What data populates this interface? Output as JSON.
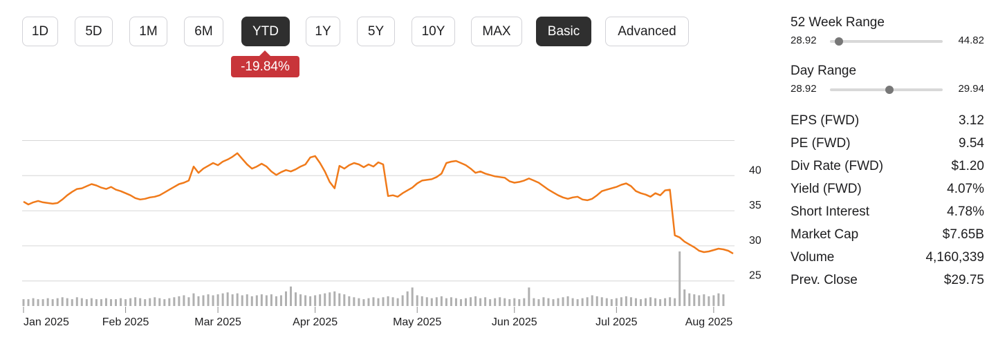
{
  "range_buttons": [
    {
      "label": "1D",
      "active": false
    },
    {
      "label": "5D",
      "active": false
    },
    {
      "label": "1M",
      "active": false
    },
    {
      "label": "6M",
      "active": false
    },
    {
      "label": "YTD",
      "active": true
    },
    {
      "label": "1Y",
      "active": false
    },
    {
      "label": "5Y",
      "active": false
    },
    {
      "label": "10Y",
      "active": false
    },
    {
      "label": "MAX",
      "active": false
    },
    {
      "label": "Basic",
      "active": true
    },
    {
      "label": "Advanced",
      "active": false
    }
  ],
  "change_badge": "-19.84%",
  "colors": {
    "line": "#f07a1a",
    "volume": "#b0b0b0",
    "grid": "#d6d6d6",
    "badge": "#c8353a",
    "active_button": "#2f2f2f"
  },
  "stats": {
    "week52": {
      "title": "52 Week Range",
      "low": "28.92",
      "high": "44.82",
      "position": 0.0
    },
    "day": {
      "title": "Day Range",
      "low": "28.92",
      "high": "29.94",
      "position": 0.53
    },
    "rows": [
      {
        "key": "EPS (FWD)",
        "value": "3.12"
      },
      {
        "key": "PE (FWD)",
        "value": "9.54"
      },
      {
        "key": "Div Rate (FWD)",
        "value": "$1.20"
      },
      {
        "key": "Yield (FWD)",
        "value": "4.07%"
      },
      {
        "key": "Short Interest",
        "value": "4.78%"
      },
      {
        "key": "Market Cap",
        "value": "$7.65B"
      },
      {
        "key": "Volume",
        "value": "4,160,339"
      },
      {
        "key": "Prev. Close",
        "value": "$29.75"
      }
    ]
  },
  "chart_data": {
    "type": "line",
    "title": "",
    "xlabel": "",
    "ylabel": "",
    "ylim": [
      20,
      45
    ],
    "y_ticks": [
      25,
      30,
      35,
      40
    ],
    "grid": true,
    "x_tick_labels": [
      "Jan 2025",
      "Feb 2025",
      "Mar 2025",
      "Apr 2025",
      "May 2025",
      "Jun 2025",
      "Jul 2025",
      "Aug 2025"
    ],
    "x_tick_index": [
      0,
      21,
      40,
      60,
      81,
      101,
      122,
      142
    ],
    "series": [
      {
        "values": [
          36.3,
          35.9,
          36.2,
          36.4,
          36.2,
          36.1,
          36.0,
          36.1,
          36.6,
          37.2,
          37.7,
          38.1,
          38.2,
          38.5,
          38.8,
          38.6,
          38.3,
          38.1,
          38.4,
          38.0,
          37.8,
          37.5,
          37.2,
          36.8,
          36.6,
          36.7,
          36.9,
          37.0,
          37.2,
          37.6,
          38.0,
          38.4,
          38.8,
          39.0,
          39.3,
          41.3,
          40.4,
          41.0,
          41.4,
          41.8,
          41.5,
          42.0,
          42.3,
          42.7,
          43.2,
          42.4,
          41.6,
          41.0,
          41.3,
          41.7,
          41.3,
          40.6,
          40.1,
          40.5,
          40.8,
          40.6,
          40.9,
          41.3,
          41.6,
          42.6,
          42.8,
          41.8,
          40.6,
          39.1,
          38.2,
          41.4,
          41.0,
          41.5,
          41.8,
          41.6,
          41.2,
          41.6,
          41.3,
          41.9,
          41.6,
          37.1,
          37.2,
          37.0,
          37.5,
          37.9,
          38.3,
          38.9,
          39.3,
          39.4,
          39.5,
          39.8,
          40.3,
          41.8,
          42.0,
          42.1,
          41.8,
          41.5,
          41.0,
          40.4,
          40.6,
          40.3,
          40.1,
          39.9,
          39.8,
          39.7,
          39.2,
          39.0,
          39.1,
          39.3,
          39.6,
          39.3,
          39.0,
          38.5,
          38.0,
          37.6,
          37.2,
          36.9,
          36.7,
          36.9,
          37.0,
          36.6,
          36.5,
          36.7,
          37.2,
          37.8,
          38.0,
          38.2,
          38.4,
          38.7,
          38.9,
          38.5,
          37.8,
          37.5,
          37.3,
          37.0,
          37.5,
          37.2,
          37.9,
          38.0,
          31.5,
          31.2,
          30.6,
          30.2,
          29.8,
          29.3,
          29.1,
          29.2,
          29.4,
          29.6,
          29.5,
          29.3,
          28.9
        ]
      }
    ],
    "volume": [
      7,
      7,
      8,
      7,
      7,
      8,
      7,
      8,
      9,
      8,
      7,
      9,
      8,
      7,
      8,
      7,
      7,
      8,
      7,
      7,
      8,
      7,
      8,
      9,
      8,
      7,
      8,
      9,
      8,
      7,
      8,
      9,
      10,
      11,
      9,
      13,
      10,
      11,
      12,
      11,
      12,
      13,
      14,
      12,
      13,
      11,
      12,
      10,
      11,
      12,
      11,
      12,
      10,
      11,
      15,
      20,
      14,
      12,
      11,
      10,
      11,
      12,
      13,
      14,
      15,
      13,
      12,
      10,
      9,
      8,
      7,
      8,
      9,
      8,
      9,
      10,
      9,
      8,
      11,
      15,
      19,
      11,
      10,
      9,
      8,
      9,
      10,
      8,
      9,
      8,
      7,
      8,
      9,
      10,
      8,
      9,
      7,
      8,
      9,
      8,
      7,
      8,
      7,
      8,
      19,
      8,
      7,
      9,
      8,
      7,
      8,
      9,
      10,
      8,
      7,
      8,
      9,
      11,
      10,
      9,
      8,
      7,
      8,
      9,
      10,
      9,
      8,
      7,
      8,
      9,
      8,
      7,
      8,
      9,
      8,
      56,
      17,
      13,
      12,
      11,
      12,
      10,
      11,
      13,
      12
    ]
  }
}
